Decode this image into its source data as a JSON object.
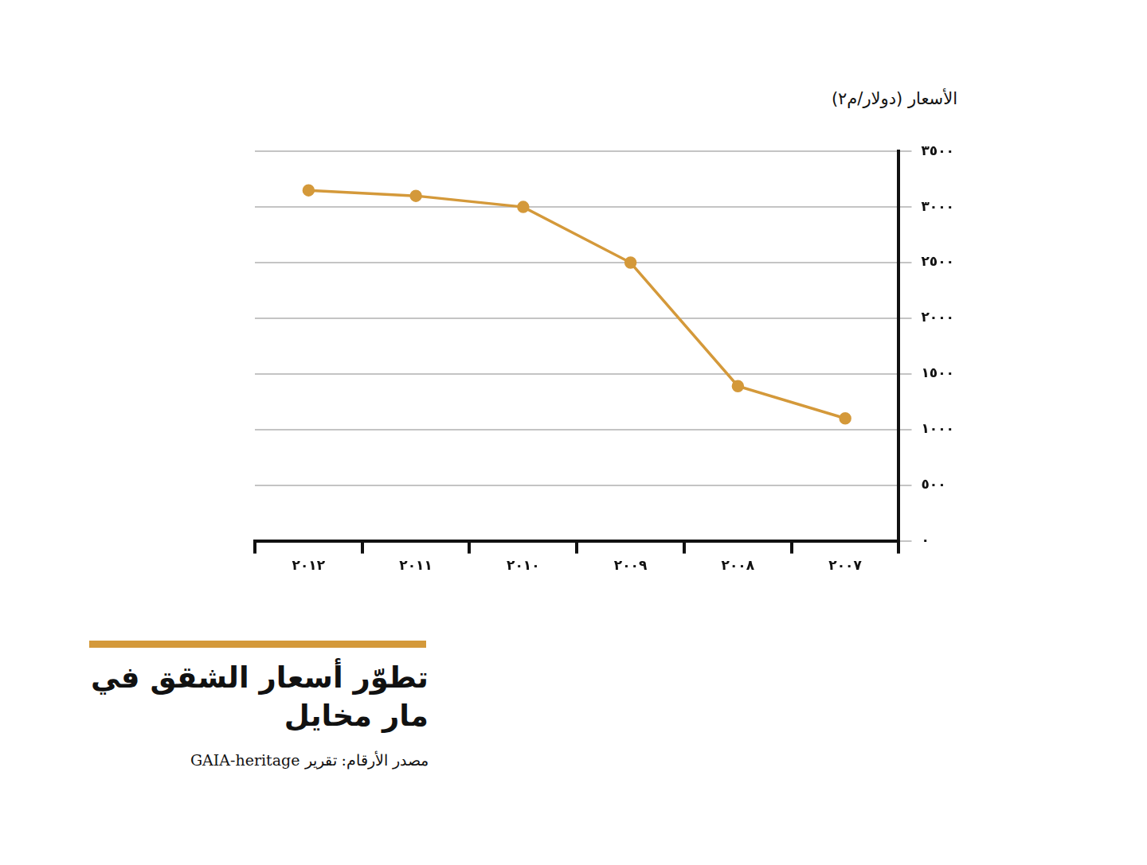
{
  "chart_data": {
    "type": "line",
    "title": "تطوّر أسعار الشقق في مار مخايل",
    "source": "مصدر الأرقام: تقرير GAIA-heritage",
    "y_label": "الأسعار (دولار/م٢)",
    "categories": [
      "٢٠٠٧",
      "٢٠٠٨",
      "٢٠٠٩",
      "٢٠١٠",
      "٢٠١١",
      "٢٠١٢"
    ],
    "values": [
      1100,
      1390,
      2500,
      3000,
      3100,
      3150
    ],
    "color": "#d4993a",
    "marker": "circle",
    "ylim": [
      0,
      3500
    ],
    "yticks": [
      {
        "value": 0,
        "label": "٠"
      },
      {
        "value": 500,
        "label": "٥٠٠"
      },
      {
        "value": 1000,
        "label": "١٠٠٠"
      },
      {
        "value": 1500,
        "label": "١٥٠٠"
      },
      {
        "value": 2000,
        "label": "٢٠٠٠"
      },
      {
        "value": 2500,
        "label": "٢٥٠٠"
      },
      {
        "value": 3000,
        "label": "٣٠٠٠"
      },
      {
        "value": 3500,
        "label": "٣٥٠٠"
      }
    ],
    "grid": true
  }
}
